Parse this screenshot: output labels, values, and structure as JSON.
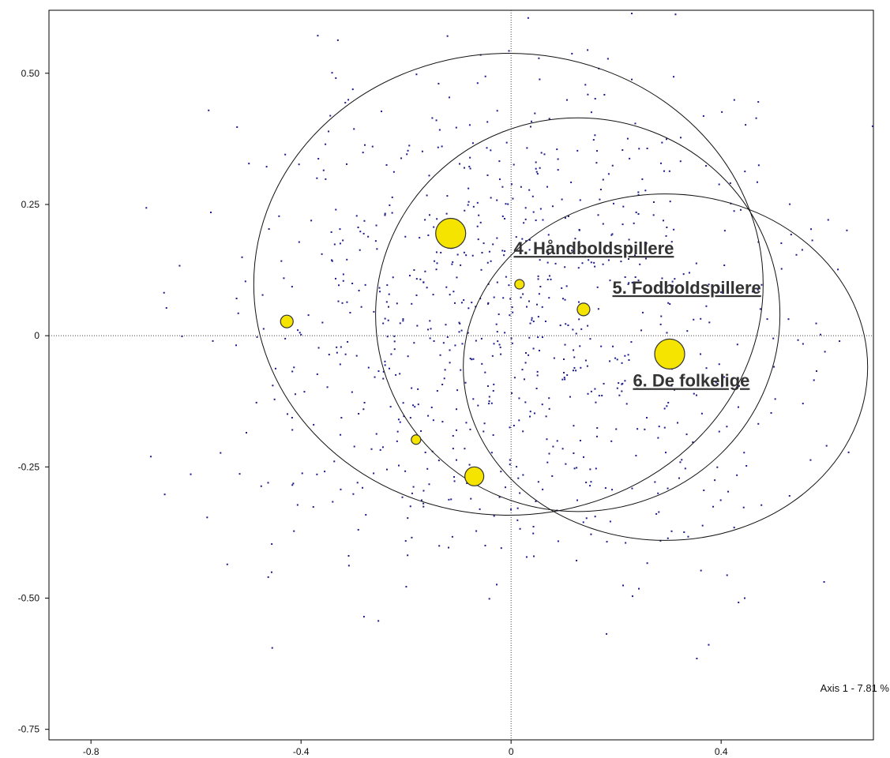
{
  "chart_data": {
    "type": "scatter",
    "title": "",
    "xlabel": "Axis 1 - 7.81 %",
    "ylabel": "",
    "xlim": [
      -0.88,
      0.69
    ],
    "ylim": [
      -0.77,
      0.62
    ],
    "x_ticks": [
      -0.8,
      -0.4,
      0,
      0.4
    ],
    "x_tick_labels": [
      "-0.8",
      "-0.4",
      "0",
      "0.4"
    ],
    "y_ticks": [
      0.5,
      0.25,
      0,
      -0.25,
      -0.5,
      -0.75
    ],
    "y_tick_labels": [
      "0.50",
      "0.25",
      "0",
      "-0.25",
      "-0.50",
      "-0.75"
    ],
    "grid": false,
    "reference_lines": {
      "x": 0,
      "y": 0,
      "style": "dotted"
    },
    "colors": {
      "points": "#1c1c8c",
      "markers": "#f5e400",
      "marker_edge": "#333333",
      "ellipse": "#111111"
    },
    "category_points": [
      {
        "x": -0.115,
        "y": 0.195,
        "size": "large"
      },
      {
        "x": 0.302,
        "y": -0.035,
        "size": "large"
      },
      {
        "x": -0.07,
        "y": -0.268,
        "size": "medium"
      },
      {
        "x": -0.427,
        "y": 0.027,
        "size": "small"
      },
      {
        "x": 0.138,
        "y": 0.05,
        "size": "small"
      },
      {
        "x": 0.016,
        "y": 0.098,
        "size": "tiny"
      },
      {
        "x": -0.181,
        "y": -0.198,
        "size": "tiny"
      }
    ],
    "group_labels": [
      {
        "text": "4. Håndboldspillere",
        "x": 0.005,
        "y": 0.155
      },
      {
        "text": "5. Fodboldspillere",
        "x": 0.193,
        "y": 0.08
      },
      {
        "text": "6. De folkelige",
        "x": 0.232,
        "y": -0.097
      }
    ],
    "ellipses": [
      {
        "cx": -0.005,
        "cy": 0.098,
        "rx": 0.485,
        "ry": 0.44
      },
      {
        "cx": 0.127,
        "cy": 0.04,
        "rx": 0.385,
        "ry": 0.375
      },
      {
        "cx": 0.294,
        "cy": -0.06,
        "rx": 0.385,
        "ry": 0.33
      }
    ],
    "cloud_point_count": 900
  }
}
